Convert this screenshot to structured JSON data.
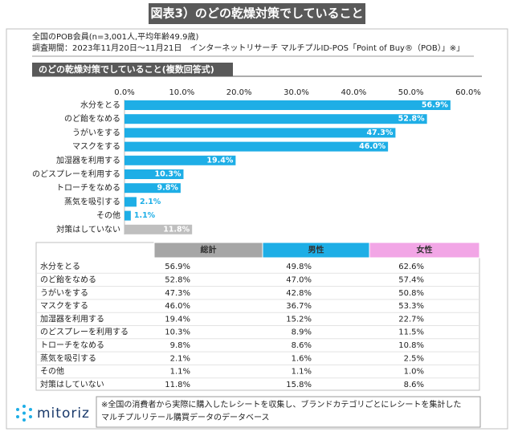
{
  "header": {
    "title": "図表3）のどの乾燥対策でしていること",
    "notes": [
      "全国のPOB会員(n=3,001人,平均年齢49.9歳)",
      "調査期間：2023年11月20日～11月21日　インターネットリサーチ マルチプルID-POS「Point of Buy®（POB）」※」"
    ]
  },
  "chart_data": {
    "type": "bar",
    "orientation": "horizontal",
    "title": "のどの乾燥対策でしていること(複数回答式)",
    "categories": [
      "水分をとる",
      "のど飴をなめる",
      "うがいをする",
      "マスクをする",
      "加湿器を利用する",
      "のどスプレーを利用する",
      "トローチをなめる",
      "蒸気を吸引する",
      "その他",
      "対策はしていない"
    ],
    "values": [
      56.9,
      52.8,
      47.3,
      46.0,
      19.4,
      10.3,
      9.8,
      2.1,
      1.1,
      11.8
    ],
    "value_labels": [
      "56.9%",
      "52.8%",
      "47.3%",
      "46.0%",
      "19.4%",
      "10.3%",
      "9.8%",
      "2.1%",
      "1.1%",
      "11.8%"
    ],
    "colors": [
      "#1eaee6",
      "#1eaee6",
      "#1eaee6",
      "#1eaee6",
      "#1eaee6",
      "#1eaee6",
      "#1eaee6",
      "#1eaee6",
      "#1eaee6",
      "#bfbfbf"
    ],
    "xlim": [
      0,
      60
    ],
    "xticks": [
      {
        "value": 0,
        "label": "0.0%"
      },
      {
        "value": 10,
        "label": "10.0%"
      },
      {
        "value": 20,
        "label": "20.0%"
      },
      {
        "value": 30,
        "label": "30.0%"
      },
      {
        "value": 40,
        "label": "40.0%"
      },
      {
        "value": 50,
        "label": "50.0%"
      },
      {
        "value": 60,
        "label": "60.0%"
      }
    ],
    "grid": false
  },
  "table": {
    "columns": [
      "総計",
      "男性",
      "女性"
    ],
    "column_colors": [
      "#a6a6a6",
      "#1eaee6",
      "#f2a6e6"
    ],
    "rows": [
      [
        "水分をとる",
        "56.9%",
        "49.8%",
        "62.6%"
      ],
      [
        "のど飴をなめる",
        "52.8%",
        "47.0%",
        "57.4%"
      ],
      [
        "うがいをする",
        "47.3%",
        "42.8%",
        "50.8%"
      ],
      [
        "マスクをする",
        "46.0%",
        "36.7%",
        "53.3%"
      ],
      [
        "加湿器を利用する",
        "19.4%",
        "15.2%",
        "22.7%"
      ],
      [
        "のどスプレーを利用する",
        "10.3%",
        "8.9%",
        "11.5%"
      ],
      [
        "トローチをなめる",
        "9.8%",
        "8.6%",
        "10.8%"
      ],
      [
        "蒸気を吸引する",
        "2.1%",
        "1.6%",
        "2.5%"
      ],
      [
        "その他",
        "1.1%",
        "1.1%",
        "1.0%"
      ],
      [
        "対策はしていない",
        "11.8%",
        "15.8%",
        "8.6%"
      ]
    ]
  },
  "footer": {
    "brand": "mitoriz",
    "note": [
      "※全国の消費者から実際に購入したレシートを収集し、ブランドカテゴリごとにレシートを集計した",
      "マルチプルリテール購買データのデータベース"
    ]
  }
}
